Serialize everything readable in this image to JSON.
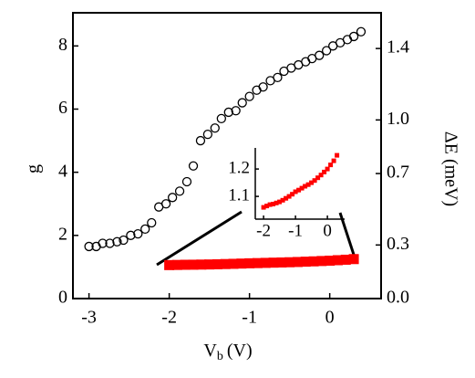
{
  "chart_data": [
    {
      "type": "scatter",
      "y_label": "g",
      "y2_label": "ΔE (meV)",
      "x_label": "V",
      "x_label_sub": "b",
      "x_label_unit": "(V)",
      "xlim": [
        -3.2,
        0.64
      ],
      "xticks": [
        -3,
        -2,
        -1,
        0
      ],
      "ylim": [
        0,
        9.05
      ],
      "yticks": [
        0,
        2,
        4,
        6,
        8
      ],
      "y2lim": [
        0,
        1.6
      ],
      "y2ticks": [
        {
          "value": 0,
          "label": "0.0"
        },
        0.3,
        0.7,
        {
          "value": 1,
          "label": "1.0"
        },
        1.4
      ],
      "series": [
        {
          "color": "#000000",
          "marker": "open-circle",
          "x": [
            -3.0,
            -2.91,
            -2.83,
            -2.74,
            -2.65,
            -2.57,
            -2.48,
            -2.39,
            -2.3,
            -2.22,
            -2.13,
            -2.04,
            -1.96,
            -1.87,
            -1.78,
            -1.7,
            -1.61,
            -1.52,
            -1.43,
            -1.35,
            -1.26,
            -1.17,
            -1.09,
            -1.0,
            -0.91,
            -0.83,
            -0.74,
            -0.65,
            -0.57,
            -0.48,
            -0.39,
            -0.3,
            -0.22,
            -0.13,
            -0.04,
            0.04,
            0.13,
            0.22,
            0.3,
            0.39
          ],
          "values": [
            1.65,
            1.65,
            1.75,
            1.75,
            1.8,
            1.85,
            2.0,
            2.05,
            2.2,
            2.4,
            2.9,
            3.0,
            3.2,
            3.4,
            3.7,
            4.2,
            5.0,
            5.2,
            5.4,
            5.7,
            5.9,
            5.95,
            6.2,
            6.4,
            6.6,
            6.7,
            6.9,
            7.0,
            7.2,
            7.3,
            7.4,
            7.5,
            7.6,
            7.7,
            7.85,
            8.0,
            8.1,
            8.2,
            8.3,
            8.45
          ]
        },
        {
          "color": "#ff0000",
          "marker": "square",
          "x": [
            -2.0,
            -1.9,
            -1.8,
            -1.7,
            -1.6,
            -1.5,
            -1.4,
            -1.3,
            -1.2,
            -1.1,
            -1.0,
            -0.9,
            -0.8,
            -0.7,
            -0.6,
            -0.5,
            -0.4,
            -0.3,
            -0.2,
            -0.1,
            0.0,
            0.1,
            0.2,
            0.3
          ],
          "values": [
            1.06,
            1.065,
            1.07,
            1.072,
            1.076,
            1.08,
            1.086,
            1.093,
            1.1,
            1.108,
            1.117,
            1.123,
            1.13,
            1.137,
            1.143,
            1.15,
            1.158,
            1.168,
            1.178,
            1.189,
            1.2,
            1.215,
            1.23,
            1.25
          ]
        }
      ]
    },
    {
      "type": "scatter",
      "xlim": [
        -2.26,
        0.54
      ],
      "xticks": [
        -2,
        -1,
        0
      ],
      "ylim": [
        1.017,
        1.277
      ],
      "yticks": [
        1.1,
        1.2
      ],
      "series": [
        {
          "color": "#ff0000",
          "marker": "square",
          "x": [
            -2.0,
            -1.9,
            -1.8,
            -1.7,
            -1.6,
            -1.5,
            -1.4,
            -1.3,
            -1.2,
            -1.1,
            -1.0,
            -0.9,
            -0.8,
            -0.7,
            -0.6,
            -0.5,
            -0.4,
            -0.3,
            -0.2,
            -0.1,
            0.0,
            0.1,
            0.2,
            0.3
          ],
          "values": [
            1.06,
            1.065,
            1.07,
            1.072,
            1.076,
            1.08,
            1.086,
            1.093,
            1.1,
            1.108,
            1.117,
            1.123,
            1.13,
            1.137,
            1.143,
            1.15,
            1.158,
            1.168,
            1.178,
            1.189,
            1.2,
            1.215,
            1.23,
            1.25
          ]
        }
      ]
    }
  ]
}
